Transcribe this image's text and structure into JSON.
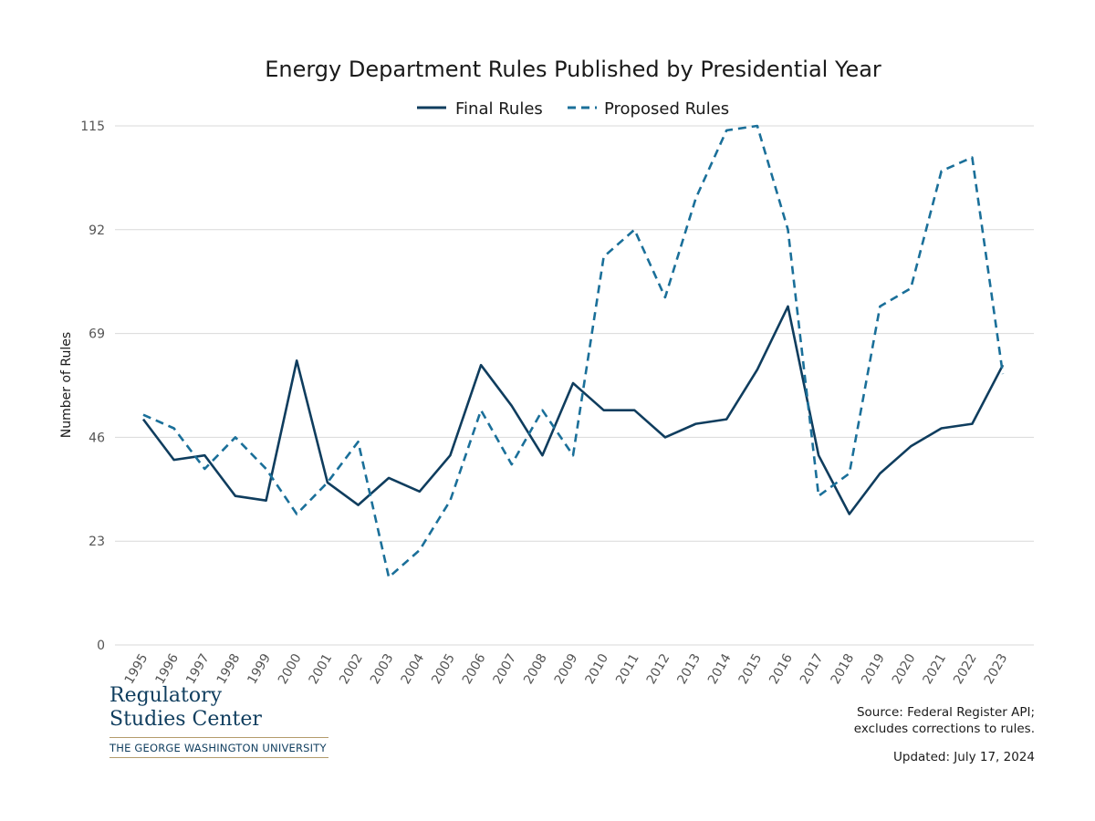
{
  "chart_data": {
    "type": "line",
    "title": "Energy Department Rules Published by Presidential Year",
    "ylabel": "Number of Rules",
    "xlabel": "",
    "ylim": [
      0,
      115
    ],
    "yticks": [
      0,
      23,
      46,
      69,
      92,
      115
    ],
    "grid": "horizontal",
    "legend_position": "top-center",
    "x": [
      "1995",
      "1996",
      "1997",
      "1998",
      "1999",
      "2000",
      "2001",
      "2002",
      "2003",
      "2004",
      "2005",
      "2006",
      "2007",
      "2008",
      "2009",
      "2010",
      "2011",
      "2012",
      "2013",
      "2014",
      "2015",
      "2016",
      "2017",
      "2018",
      "2019",
      "2020",
      "2021",
      "2022",
      "2023"
    ],
    "series": [
      {
        "name": "Final Rules",
        "style": "solid",
        "color": "#0f3d5e",
        "values": [
          50,
          41,
          42,
          33,
          32,
          63,
          36,
          31,
          37,
          34,
          42,
          62,
          53,
          42,
          58,
          52,
          52,
          46,
          49,
          50,
          61,
          75,
          42,
          29,
          38,
          44,
          48,
          49,
          62
        ]
      },
      {
        "name": "Proposed Rules",
        "style": "dashed",
        "color": "#1a6f99",
        "values": [
          51,
          48,
          39,
          46,
          39,
          29,
          36,
          45,
          15,
          21,
          32,
          52,
          40,
          52,
          42,
          86,
          92,
          77,
          99,
          114,
          115,
          92,
          33,
          38,
          75,
          79,
          105,
          108,
          60
        ]
      }
    ]
  },
  "logo": {
    "line1": "Regulatory",
    "line2": "Studies Center",
    "sub": "THE GEORGE WASHINGTON UNIVERSITY"
  },
  "source": {
    "line1": "Source: Federal Register API;",
    "line2": "excludes corrections to rules."
  },
  "updated": "Updated: July 17, 2024"
}
